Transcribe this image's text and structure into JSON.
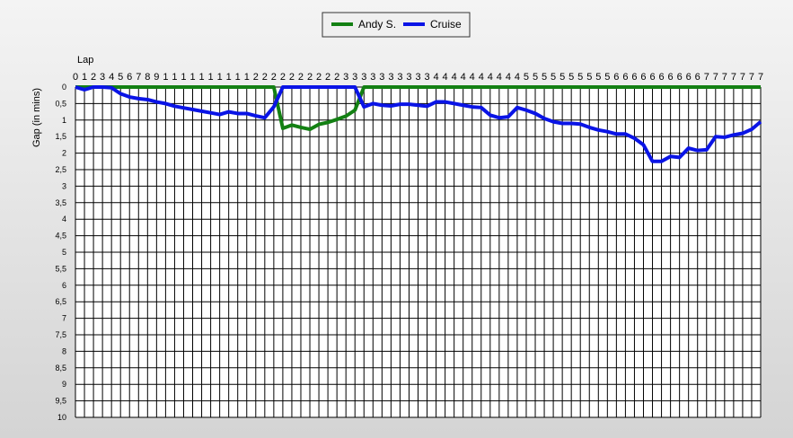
{
  "chart_data": {
    "type": "line",
    "x_label": "Lap",
    "y_label": "Gap (in mins)",
    "xlim": [
      0,
      76
    ],
    "ylim": [
      0,
      10
    ],
    "y_inverted": true,
    "grid": true,
    "xticks": [
      0,
      1,
      2,
      3,
      4,
      5,
      6,
      7,
      8,
      9,
      {
        "value": 10,
        "label": "1"
      },
      {
        "value": 11,
        "label": "1"
      },
      {
        "value": 12,
        "label": "1"
      },
      {
        "value": 13,
        "label": "1"
      },
      {
        "value": 14,
        "label": "1"
      },
      {
        "value": 15,
        "label": "1"
      },
      {
        "value": 16,
        "label": "1"
      },
      {
        "value": 17,
        "label": "1"
      },
      {
        "value": 18,
        "label": "1"
      },
      {
        "value": 19,
        "label": "1"
      },
      {
        "value": 20,
        "label": "2"
      },
      {
        "value": 21,
        "label": "2"
      },
      {
        "value": 22,
        "label": "2"
      },
      {
        "value": 23,
        "label": "2"
      },
      {
        "value": 24,
        "label": "2"
      },
      {
        "value": 25,
        "label": "2"
      },
      {
        "value": 26,
        "label": "2"
      },
      {
        "value": 27,
        "label": "2"
      },
      {
        "value": 28,
        "label": "2"
      },
      {
        "value": 29,
        "label": "2"
      },
      {
        "value": 30,
        "label": "3"
      },
      {
        "value": 31,
        "label": "3"
      },
      {
        "value": 32,
        "label": "3"
      },
      {
        "value": 33,
        "label": "3"
      },
      {
        "value": 34,
        "label": "3"
      },
      {
        "value": 35,
        "label": "3"
      },
      {
        "value": 36,
        "label": "3"
      },
      {
        "value": 37,
        "label": "3"
      },
      {
        "value": 38,
        "label": "3"
      },
      {
        "value": 39,
        "label": "3"
      },
      {
        "value": 40,
        "label": "4"
      },
      {
        "value": 41,
        "label": "4"
      },
      {
        "value": 42,
        "label": "4"
      },
      {
        "value": 43,
        "label": "4"
      },
      {
        "value": 44,
        "label": "4"
      },
      {
        "value": 45,
        "label": "4"
      },
      {
        "value": 46,
        "label": "4"
      },
      {
        "value": 47,
        "label": "4"
      },
      {
        "value": 48,
        "label": "4"
      },
      {
        "value": 49,
        "label": "4"
      },
      {
        "value": 50,
        "label": "5"
      },
      {
        "value": 51,
        "label": "5"
      },
      {
        "value": 52,
        "label": "5"
      },
      {
        "value": 53,
        "label": "5"
      },
      {
        "value": 54,
        "label": "5"
      },
      {
        "value": 55,
        "label": "5"
      },
      {
        "value": 56,
        "label": "5"
      },
      {
        "value": 57,
        "label": "5"
      },
      {
        "value": 58,
        "label": "5"
      },
      {
        "value": 59,
        "label": "5"
      },
      {
        "value": 60,
        "label": "6"
      },
      {
        "value": 61,
        "label": "6"
      },
      {
        "value": 62,
        "label": "6"
      },
      {
        "value": 63,
        "label": "6"
      },
      {
        "value": 64,
        "label": "6"
      },
      {
        "value": 65,
        "label": "6"
      },
      {
        "value": 66,
        "label": "6"
      },
      {
        "value": 67,
        "label": "6"
      },
      {
        "value": 68,
        "label": "6"
      },
      {
        "value": 69,
        "label": "6"
      },
      {
        "value": 70,
        "label": "7"
      },
      {
        "value": 71,
        "label": "7"
      },
      {
        "value": 72,
        "label": "7"
      },
      {
        "value": 73,
        "label": "7"
      },
      {
        "value": 74,
        "label": "7"
      },
      {
        "value": 75,
        "label": "7"
      },
      {
        "value": 76,
        "label": "7"
      }
    ],
    "yticks": [
      0,
      {
        "value": 0.5,
        "label": "0,5"
      },
      1,
      {
        "value": 1.5,
        "label": "1,5"
      },
      2,
      {
        "value": 2.5,
        "label": "2,5"
      },
      3,
      {
        "value": 3.5,
        "label": "3,5"
      },
      4,
      {
        "value": 4.5,
        "label": "4,5"
      },
      5,
      {
        "value": 5.5,
        "label": "5,5"
      },
      6,
      {
        "value": 6.5,
        "label": "6,5"
      },
      7,
      {
        "value": 7.5,
        "label": "7,5"
      },
      8,
      {
        "value": 8.5,
        "label": "8,5"
      },
      9,
      {
        "value": 9.5,
        "label": "9,5"
      },
      10
    ],
    "x": [
      0,
      1,
      2,
      3,
      4,
      5,
      6,
      7,
      8,
      9,
      10,
      11,
      12,
      13,
      14,
      15,
      16,
      17,
      18,
      19,
      20,
      21,
      22,
      23,
      24,
      25,
      26,
      27,
      28,
      29,
      30,
      31,
      32,
      33,
      34,
      35,
      36,
      37,
      38,
      39,
      40,
      41,
      42,
      43,
      44,
      45,
      46,
      47,
      48,
      49,
      50,
      51,
      52,
      53,
      54,
      55,
      56,
      57,
      58,
      59,
      60,
      61,
      62,
      63,
      64,
      65,
      66,
      67,
      68,
      69,
      70,
      71,
      72,
      73,
      74,
      75,
      76
    ],
    "series": [
      {
        "name": "Andy S.",
        "color": "#138013",
        "values": [
          0,
          0,
          0,
          0,
          0,
          0,
          0,
          0,
          0,
          0,
          0,
          0,
          0,
          0,
          0,
          0,
          0,
          0,
          0,
          0,
          0,
          0,
          0,
          1.25,
          1.15,
          1.22,
          1.28,
          1.13,
          1.07,
          0.98,
          0.88,
          0.7,
          0,
          0,
          0,
          0,
          0,
          0,
          0,
          0,
          0,
          0,
          0,
          0,
          0,
          0,
          0,
          0,
          0,
          0,
          0,
          0,
          0,
          0,
          0,
          0,
          0,
          0,
          0,
          0,
          0,
          0,
          0,
          0,
          0,
          0,
          0,
          0,
          0,
          0,
          0,
          0,
          0,
          0,
          0,
          0,
          0
        ]
      },
      {
        "name": "Cruise",
        "color": "#0a14e6",
        "values": [
          0,
          0.08,
          0,
          0,
          0.02,
          0.2,
          0.3,
          0.35,
          0.38,
          0.45,
          0.5,
          0.58,
          0.63,
          0.68,
          0.73,
          0.78,
          0.83,
          0.75,
          0.8,
          0.8,
          0.87,
          0.93,
          0.6,
          0,
          0,
          0,
          0,
          0,
          0,
          0,
          0,
          0,
          0.6,
          0.5,
          0.55,
          0.57,
          0.52,
          0.52,
          0.55,
          0.58,
          0.45,
          0.45,
          0.5,
          0.55,
          0.6,
          0.62,
          0.85,
          0.93,
          0.9,
          0.62,
          0.7,
          0.8,
          0.95,
          1.05,
          1.1,
          1.1,
          1.12,
          1.22,
          1.3,
          1.35,
          1.42,
          1.42,
          1.55,
          1.75,
          2.25,
          2.25,
          2.1,
          2.13,
          1.85,
          1.92,
          1.9,
          1.5,
          1.52,
          1.45,
          1.4,
          1.28,
          1.05
        ]
      }
    ]
  }
}
